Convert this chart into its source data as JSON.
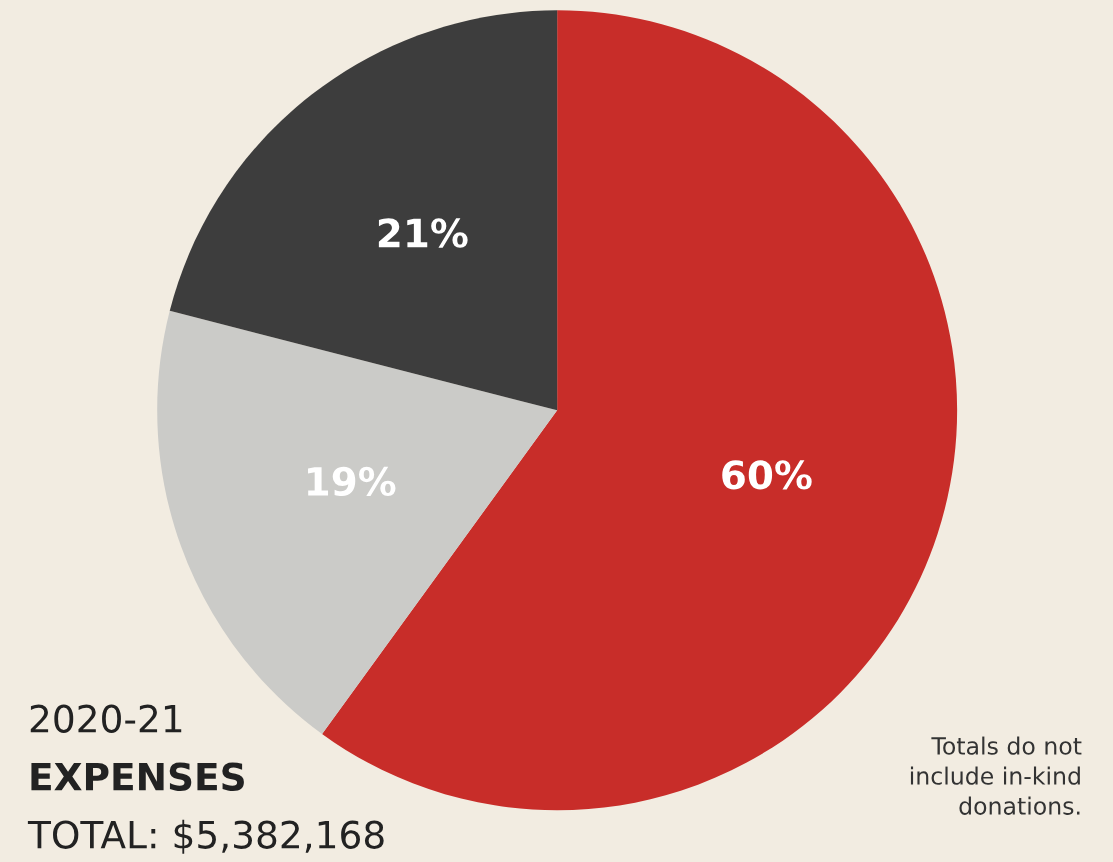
{
  "chart_data": {
    "type": "pie",
    "title": "2020-21",
    "subtitle": "EXPENSES",
    "categories": [
      null,
      null,
      null
    ],
    "values": [
      60,
      19,
      21
    ],
    "colors": [
      "#c82d29",
      "#cbcbc8",
      "#3d3d3d"
    ],
    "value_labels": [
      "60%",
      "19%",
      "21%"
    ],
    "annotations": [
      "TOTAL: $5,382,168",
      "Totals do not\ninclude in-kind\ndonations."
    ]
  }
}
